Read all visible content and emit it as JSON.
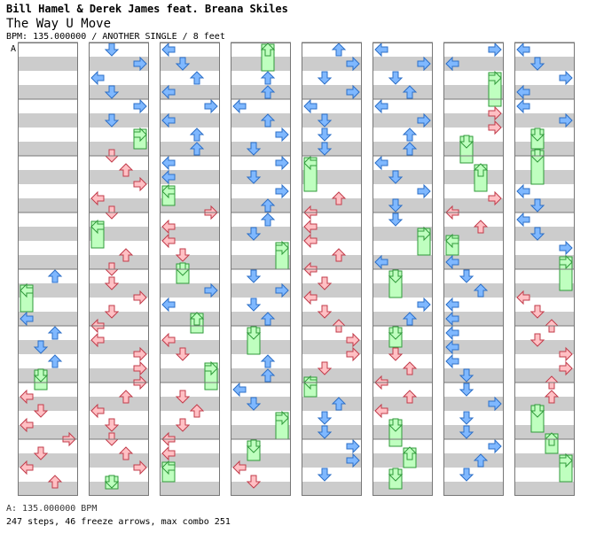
{
  "header": {
    "artist": "Bill Hamel & Derek James feat. Breana Skiles",
    "title": "The Way U Move",
    "meta": "BPM: 135.000000 / ANOTHER SINGLE / 8 feet",
    "bpm_marker": "A"
  },
  "footer": {
    "bpm_line": "A: 135.000000 BPM",
    "stats_line": "247 steps, 46 freeze arrows, max combo 251"
  },
  "colors": {
    "stripe": "#cccccc",
    "border": "#777777",
    "arrow_pink": "#ffc0c4",
    "arrow_pink_edge": "#c23b4a",
    "arrow_blue": "#7fb8ff",
    "arrow_blue_edge": "#2c6fc7",
    "freeze_green": "#bfffbf",
    "freeze_green_edge": "#2f9a3a"
  },
  "columns": 8,
  "measures_per_column": 8,
  "icons": [
    "left-arrow-icon",
    "down-arrow-icon",
    "up-arrow-icon",
    "right-arrow-icon",
    "freeze-arrow-icon"
  ]
}
